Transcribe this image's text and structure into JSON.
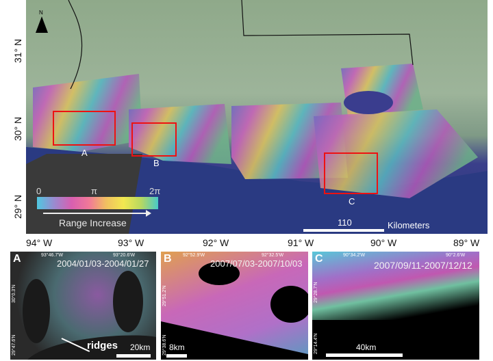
{
  "main_map": {
    "north_label": "N",
    "lat_labels": [
      "31° N",
      "30° N",
      "29° N"
    ],
    "lon_labels": [
      "94° W",
      "93° W",
      "92° W",
      "91° W",
      "90° W",
      "89° W"
    ],
    "region_labels": [
      "A",
      "B",
      "C"
    ],
    "colorbar": {
      "min_label": "0",
      "mid_label": "π",
      "max_label": "2π",
      "caption": "Range Increase",
      "colors": [
        "#4fc8e0",
        "#d85fb0",
        "#f2e850",
        "#48c8c8"
      ]
    },
    "scale": {
      "value": "110",
      "unit": "Kilometers"
    },
    "box_color": "#e11111"
  },
  "insets": [
    {
      "letter": "A",
      "dates": "2004/01/03-2004/01/27",
      "lon_left": "93°46.7'W",
      "lon_right": "93°20.6'W",
      "lat_top": "30°0.3'N",
      "lat_bottom": "29°47.6'N",
      "annotation": "ridges",
      "scale": "20km"
    },
    {
      "letter": "B",
      "dates": "2007/07/03-2007/10/03",
      "lon_left": "92°52.9'W",
      "lon_right": "92°32.5'W",
      "lat_top": "29°51.2'N",
      "lat_bottom": "29°38.6'N",
      "scale": "8km"
    },
    {
      "letter": "C",
      "dates": "2007/09/11-2007/12/12",
      "lon_left": "90°34.2'W",
      "lon_right": "90°2.6'W",
      "lat_top": "29°28.7'N",
      "lat_bottom": "29°14.4'N",
      "scale": "40km"
    }
  ]
}
